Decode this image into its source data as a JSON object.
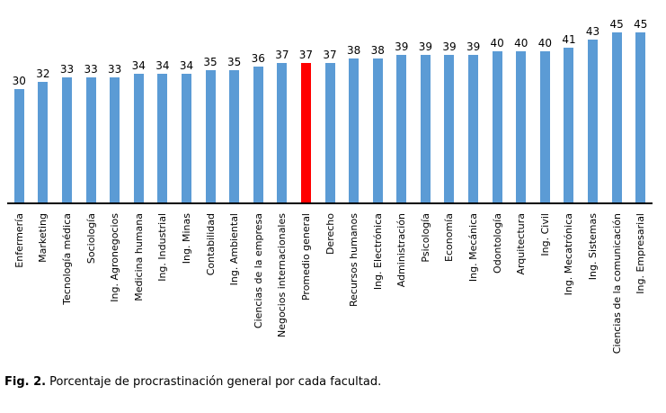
{
  "figure": {
    "caption": {
      "prefix": "Fig. 2.",
      "text": "Porcentaje de procrastinación general por cada facultad."
    }
  },
  "chart_data": {
    "type": "bar",
    "title": "",
    "xlabel": "",
    "ylabel": "",
    "categories": [
      "Enfermería",
      "Marketing",
      "Tecnología médica",
      "Sociología",
      "Ing. Agronegocios",
      "Medicina humana",
      "Ing. Industrial",
      "Ing. Minas",
      "Contabilidad",
      "Ing. Ambiental",
      "Ciencias de la empresa",
      "Negocios internacionales",
      "Promedio general",
      "Derecho",
      "Recursos humanos",
      "Ing. Electrónica",
      "Administración",
      "Psicología",
      "Economía",
      "Ing. Mecánica",
      "Odontología",
      "Arquitectura",
      "Ing. Civil",
      "Ing. Mecatrónica",
      "Ing. Sistemas",
      "Ciencias de la comunicación",
      "Ing. Empresarial"
    ],
    "values": [
      30,
      32,
      33,
      33,
      33,
      34,
      34,
      34,
      35,
      35,
      36,
      37,
      37,
      37,
      38,
      38,
      39,
      39,
      39,
      39,
      40,
      40,
      40,
      41,
      43,
      45,
      45
    ],
    "value_labels_shown": true,
    "highlight_index": 12,
    "highlight_category": "Promedio general",
    "bar_color": "#5B9BD5",
    "highlight_color": "#FF0000",
    "axis_line_color": "#000000",
    "ylim": [
      0,
      47
    ],
    "gridlines": false,
    "y_axis_shown": false,
    "legend": "none",
    "category_label_rotation_degrees": 90,
    "caption": "Fig. 2. Porcentaje de procrastinación general por cada facultad."
  }
}
